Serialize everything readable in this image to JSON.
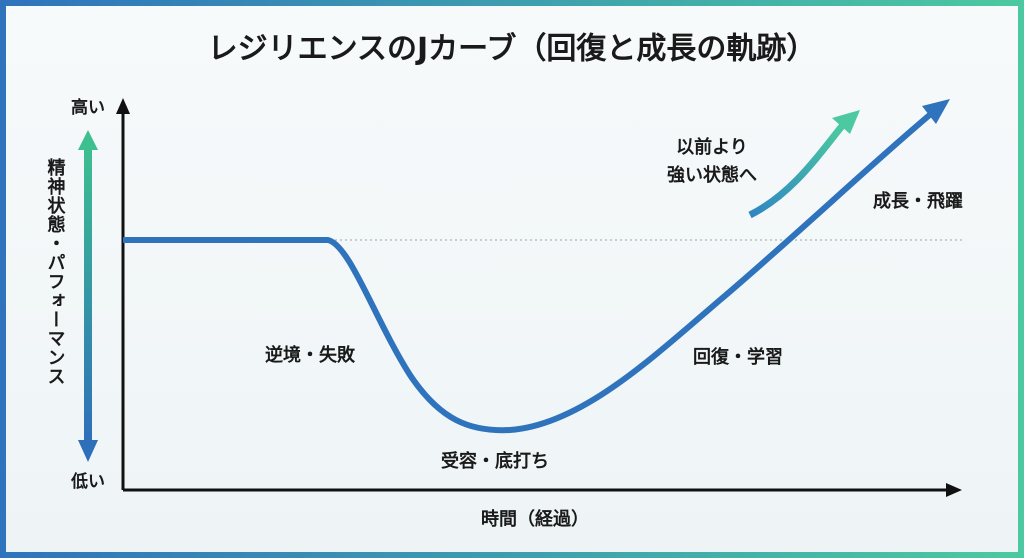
{
  "title": "レジリエンスのJカーブ（回復と成長の軌跡）",
  "axes": {
    "y_high": "高い",
    "y_low": "低い",
    "y_label": "精神状態・パフォーマンス",
    "x_label": "時間（経過）"
  },
  "phases": [
    "逆境・失敗",
    "受容・底打ち",
    "回復・学習",
    "成長・飛躍"
  ],
  "annotation": {
    "lines": [
      "以前より",
      "強い状態へ"
    ]
  }
}
